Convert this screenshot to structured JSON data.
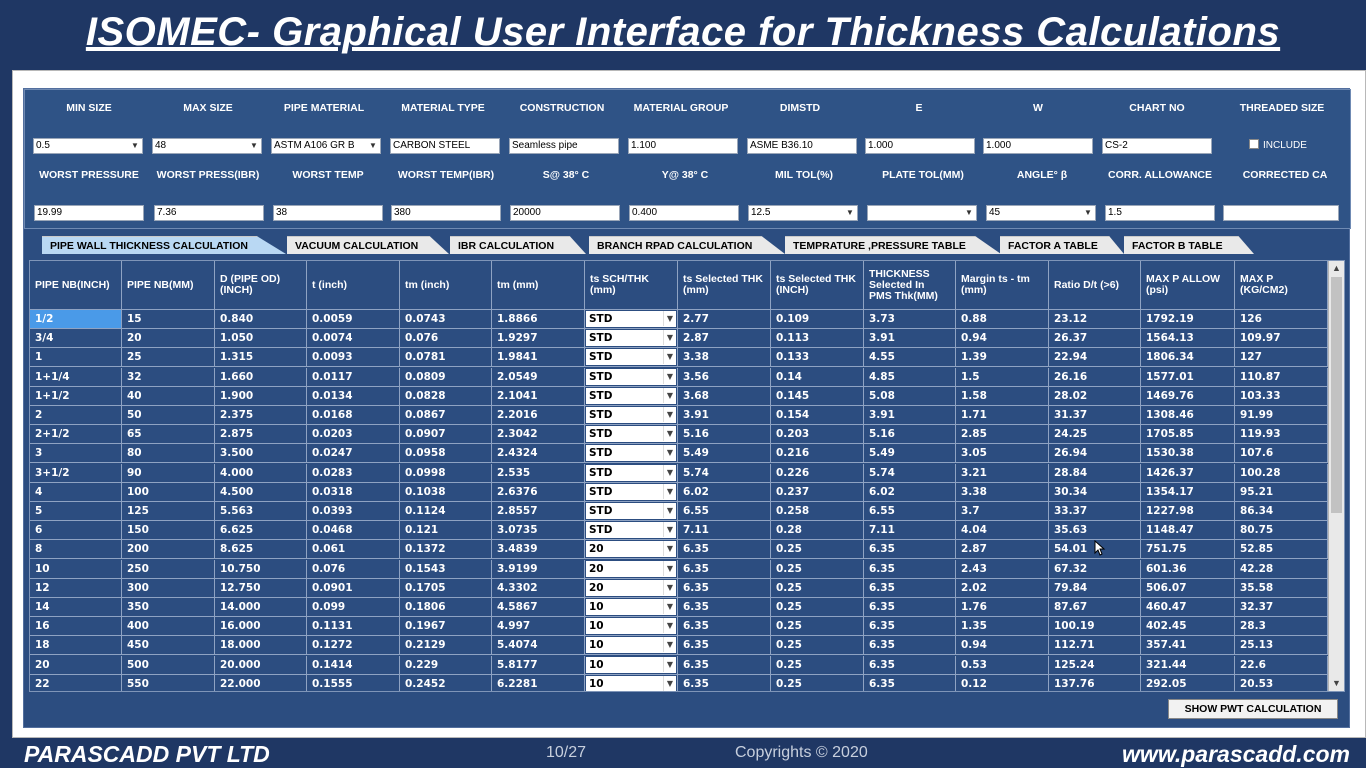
{
  "title": "ISOMEC- Graphical User Interface for Thickness Calculations",
  "params": {
    "row1_labels": [
      "MIN SIZE",
      "MAX SIZE",
      "PIPE MATERIAL",
      "MATERIAL TYPE",
      "CONSTRUCTION",
      "MATERIAL GROUP",
      "DIMSTD",
      "E",
      "W",
      "CHART NO",
      "THREADED SIZE"
    ],
    "min_size": "0.5",
    "max_size": "48",
    "pipe_material": "ASTM A106 GR B",
    "material_type": "CARBON STEEL",
    "construction": "Seamless pipe",
    "material_group": "1.100",
    "dimstd": "ASME B36.10",
    "e": "1.000",
    "w": "1.000",
    "chart_no": "CS-2",
    "include_label": "INCLUDE",
    "row2_labels": [
      "WORST PRESSURE",
      "WORST PRESS(IBR)",
      "WORST TEMP",
      "WORST TEMP(IBR)",
      "S@ 38° C",
      "Y@ 38° C",
      "MIL TOL(%)",
      "PLATE TOL(MM)",
      "ANGLE° β",
      "CORR. ALLOWANCE",
      "CORRECTED CA"
    ],
    "worst_pressure": "19.99",
    "worst_press_ibr": "7.36",
    "worst_temp": "38",
    "worst_temp_ibr": "380",
    "s38": "20000",
    "y38": "0.400",
    "mil_tol": "12.5",
    "plate_tol": "",
    "angle": "45",
    "corr_allowance": "1.5",
    "corrected_ca": ""
  },
  "tabs": [
    {
      "label": "PIPE WALL THICKNESS CALCULATION"
    },
    {
      "label": "VACUUM CALCULATION"
    },
    {
      "label": "IBR CALCULATION"
    },
    {
      "label": "BRANCH RPAD CALCULATION"
    },
    {
      "label": "TEMPRATURE ,PRESSURE TABLE"
    },
    {
      "label": "FACTOR A TABLE"
    },
    {
      "label": "FACTOR B TABLE"
    }
  ],
  "table": {
    "headers": [
      "PIPE NB(INCH)",
      "PIPE NB(MM)",
      "D (PIPE OD) (INCH)",
      "t (inch)",
      "tm (inch)",
      "tm (mm)",
      "ts SCH/THK (mm)",
      "ts Selected THK (mm)",
      "ts Selected THK (INCH)",
      "THICKNESS Selected In PMS Thk(MM)",
      "Margin ts - tm (mm)",
      "Ratio D/t (>6)",
      "MAX P ALLOW (psi)",
      "MAX P (KG/CM2)"
    ],
    "rows": [
      [
        "1/2",
        "15",
        "0.840",
        "0.0059",
        "0.0743",
        "1.8866",
        "STD",
        "2.77",
        "0.109",
        "3.73",
        "0.88",
        "23.12",
        "1792.19",
        "126"
      ],
      [
        "3/4",
        "20",
        "1.050",
        "0.0074",
        "0.076",
        "1.9297",
        "STD",
        "2.87",
        "0.113",
        "3.91",
        "0.94",
        "26.37",
        "1564.13",
        "109.97"
      ],
      [
        "1",
        "25",
        "1.315",
        "0.0093",
        "0.0781",
        "1.9841",
        "STD",
        "3.38",
        "0.133",
        "4.55",
        "1.39",
        "22.94",
        "1806.34",
        "127"
      ],
      [
        "1+1/4",
        "32",
        "1.660",
        "0.0117",
        "0.0809",
        "2.0549",
        "STD",
        "3.56",
        "0.14",
        "4.85",
        "1.5",
        "26.16",
        "1577.01",
        "110.87"
      ],
      [
        "1+1/2",
        "40",
        "1.900",
        "0.0134",
        "0.0828",
        "2.1041",
        "STD",
        "3.68",
        "0.145",
        "5.08",
        "1.58",
        "28.02",
        "1469.76",
        "103.33"
      ],
      [
        "2",
        "50",
        "2.375",
        "0.0168",
        "0.0867",
        "2.2016",
        "STD",
        "3.91",
        "0.154",
        "3.91",
        "1.71",
        "31.37",
        "1308.46",
        "91.99"
      ],
      [
        "2+1/2",
        "65",
        "2.875",
        "0.0203",
        "0.0907",
        "2.3042",
        "STD",
        "5.16",
        "0.203",
        "5.16",
        "2.85",
        "24.25",
        "1705.85",
        "119.93"
      ],
      [
        "3",
        "80",
        "3.500",
        "0.0247",
        "0.0958",
        "2.4324",
        "STD",
        "5.49",
        "0.216",
        "5.49",
        "3.05",
        "26.94",
        "1530.38",
        "107.6"
      ],
      [
        "3+1/2",
        "90",
        "4.000",
        "0.0283",
        "0.0998",
        "2.535",
        "STD",
        "5.74",
        "0.226",
        "5.74",
        "3.21",
        "28.84",
        "1426.37",
        "100.28"
      ],
      [
        "4",
        "100",
        "4.500",
        "0.0318",
        "0.1038",
        "2.6376",
        "STD",
        "6.02",
        "0.237",
        "6.02",
        "3.38",
        "30.34",
        "1354.17",
        "95.21"
      ],
      [
        "5",
        "125",
        "5.563",
        "0.0393",
        "0.1124",
        "2.8557",
        "STD",
        "6.55",
        "0.258",
        "6.55",
        "3.7",
        "33.37",
        "1227.98",
        "86.34"
      ],
      [
        "6",
        "150",
        "6.625",
        "0.0468",
        "0.121",
        "3.0735",
        "STD",
        "7.11",
        "0.28",
        "7.11",
        "4.04",
        "35.63",
        "1148.47",
        "80.75"
      ],
      [
        "8",
        "200",
        "8.625",
        "0.061",
        "0.1372",
        "3.4839",
        "20",
        "6.35",
        "0.25",
        "6.35",
        "2.87",
        "54.01",
        "751.75",
        "52.85"
      ],
      [
        "10",
        "250",
        "10.750",
        "0.076",
        "0.1543",
        "3.9199",
        "20",
        "6.35",
        "0.25",
        "6.35",
        "2.43",
        "67.32",
        "601.36",
        "42.28"
      ],
      [
        "12",
        "300",
        "12.750",
        "0.0901",
        "0.1705",
        "4.3302",
        "20",
        "6.35",
        "0.25",
        "6.35",
        "2.02",
        "79.84",
        "506.07",
        "35.58"
      ],
      [
        "14",
        "350",
        "14.000",
        "0.099",
        "0.1806",
        "4.5867",
        "10",
        "6.35",
        "0.25",
        "6.35",
        "1.76",
        "87.67",
        "460.47",
        "32.37"
      ],
      [
        "16",
        "400",
        "16.000",
        "0.1131",
        "0.1967",
        "4.997",
        "10",
        "6.35",
        "0.25",
        "6.35",
        "1.35",
        "100.19",
        "402.45",
        "28.3"
      ],
      [
        "18",
        "450",
        "18.000",
        "0.1272",
        "0.2129",
        "5.4074",
        "10",
        "6.35",
        "0.25",
        "6.35",
        "0.94",
        "112.71",
        "357.41",
        "25.13"
      ],
      [
        "20",
        "500",
        "20.000",
        "0.1414",
        "0.229",
        "5.8177",
        "10",
        "6.35",
        "0.25",
        "6.35",
        "0.53",
        "125.24",
        "321.44",
        "22.6"
      ],
      [
        "22",
        "550",
        "22.000",
        "0.1555",
        "0.2452",
        "6.2281",
        "10",
        "6.35",
        "0.25",
        "6.35",
        "0.12",
        "137.76",
        "292.05",
        "20.53"
      ]
    ]
  },
  "show_pwt_label": "SHOW PWT CALCULATION",
  "footer": {
    "company": "PARASCADD PVT LTD",
    "page": "10/27",
    "copyright": "Copyrights © 2020",
    "website": "www.parascadd.com"
  }
}
